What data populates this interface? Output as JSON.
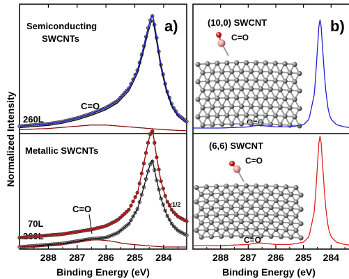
{
  "ylabel": "Normalized Intensity",
  "chart_data": [
    {
      "panel": "a",
      "type": "line",
      "panel_label": "a)",
      "xlabel": "Binding Energy (eV)",
      "xlim": [
        289,
        283.2
      ],
      "xticks": [
        "288",
        "287",
        "286",
        "285",
        "284"
      ],
      "subplots": [
        {
          "title_lines": [
            "Semiconducting",
            "SWCNTs"
          ],
          "annotation": "C=O",
          "dose_labels": [
            "260L"
          ],
          "series": [
            {
              "x": [
                289.0,
                288.5,
                288.0,
                287.5,
                287.0,
                286.5,
                286.0,
                285.6,
                285.2,
                284.9,
                284.7,
                284.55,
                284.45,
                284.4,
                284.35,
                284.25,
                284.1,
                283.9,
                283.7,
                283.5,
                283.2
              ],
              "y": [
                0.04,
                0.05,
                0.06,
                0.08,
                0.11,
                0.15,
                0.2,
                0.26,
                0.37,
                0.53,
                0.72,
                0.88,
                0.97,
                1.0,
                0.97,
                0.82,
                0.58,
                0.36,
                0.22,
                0.14,
                0.08
              ]
            },
            {
              "x": [
                289.0,
                288.0,
                287.0,
                286.5,
                286.0,
                285.5,
                285.0,
                284.5,
                284.0,
                283.2
              ],
              "y": [
                0.01,
                0.02,
                0.04,
                0.05,
                0.05,
                0.04,
                0.03,
                0.02,
                0.01,
                0.0
              ]
            }
          ]
        },
        {
          "title_lines": [
            "Metallic SWCNTs"
          ],
          "annotation": "C=O",
          "dose_labels": [
            "70L",
            "260L"
          ],
          "scale_note": "x1/2",
          "series": [
            {
              "x": [
                289.0,
                288.5,
                288.0,
                287.5,
                287.0,
                286.5,
                286.0,
                285.6,
                285.2,
                284.9,
                284.7,
                284.55,
                284.45,
                284.4,
                284.35,
                284.25,
                284.1,
                283.9,
                283.7,
                283.5,
                283.2
              ],
              "y": [
                0.08,
                0.09,
                0.1,
                0.11,
                0.13,
                0.15,
                0.18,
                0.23,
                0.32,
                0.47,
                0.7,
                0.88,
                0.98,
                1.0,
                0.95,
                0.78,
                0.57,
                0.4,
                0.31,
                0.26,
                0.22
              ]
            },
            {
              "x": [
                289.0,
                288.5,
                288.0,
                287.5,
                287.0,
                286.5,
                286.0,
                285.6,
                285.2,
                284.9,
                284.7,
                284.55,
                284.45,
                284.4,
                284.35,
                284.25,
                284.1,
                283.9,
                283.7,
                283.5,
                283.2
              ],
              "y": [
                0.0,
                0.01,
                0.02,
                0.03,
                0.05,
                0.07,
                0.08,
                0.12,
                0.2,
                0.33,
                0.5,
                0.64,
                0.72,
                0.74,
                0.7,
                0.58,
                0.42,
                0.28,
                0.19,
                0.14,
                0.1
              ]
            },
            {
              "x": [
                289.0,
                288.0,
                287.0,
                286.6,
                286.2,
                285.8,
                285.4,
                285.0,
                284.5,
                284.0,
                283.2
              ],
              "y": [
                0.0,
                0.01,
                0.04,
                0.06,
                0.06,
                0.05,
                0.03,
                0.02,
                0.01,
                0.0,
                0.0
              ]
            }
          ]
        }
      ]
    },
    {
      "panel": "b",
      "type": "line",
      "panel_label": "b)",
      "xlabel": "Binding Energy (eV)",
      "xlim": [
        289,
        283.2
      ],
      "xticks": [
        "288",
        "287",
        "286",
        "285",
        "284"
      ],
      "subplots": [
        {
          "title": "(10,0) SWCNT",
          "molecule_label": "C=O",
          "annotation": "C=O",
          "color": "#1f1fd6",
          "series": [
            {
              "x": [
                289.0,
                288.0,
                287.0,
                286.8,
                286.6,
                286.4,
                286.0,
                285.5,
                285.0,
                284.8,
                284.6,
                284.5,
                284.45,
                284.4,
                284.35,
                284.3,
                284.2,
                284.1,
                284.0,
                283.8,
                283.5,
                283.2
              ],
              "y": [
                0.0,
                0.0,
                0.01,
                0.02,
                0.025,
                0.02,
                0.01,
                0.01,
                0.03,
                0.08,
                0.32,
                0.7,
                0.92,
                1.0,
                0.92,
                0.7,
                0.36,
                0.16,
                0.08,
                0.03,
                0.01,
                0.0
              ]
            }
          ]
        },
        {
          "title": "(6,6) SWCNT",
          "molecule_label": "C=O",
          "annotation": "C=O",
          "color": "#e02020",
          "series": [
            {
              "x": [
                289.0,
                288.0,
                287.0,
                286.8,
                286.6,
                286.4,
                286.0,
                285.5,
                285.0,
                284.8,
                284.6,
                284.5,
                284.45,
                284.4,
                284.35,
                284.3,
                284.2,
                284.1,
                284.0,
                283.8,
                283.5,
                283.2
              ],
              "y": [
                0.0,
                0.0,
                0.01,
                0.02,
                0.025,
                0.02,
                0.01,
                0.01,
                0.03,
                0.08,
                0.32,
                0.7,
                0.92,
                1.0,
                0.92,
                0.7,
                0.36,
                0.16,
                0.08,
                0.03,
                0.01,
                0.0
              ]
            }
          ]
        }
      ]
    }
  ]
}
